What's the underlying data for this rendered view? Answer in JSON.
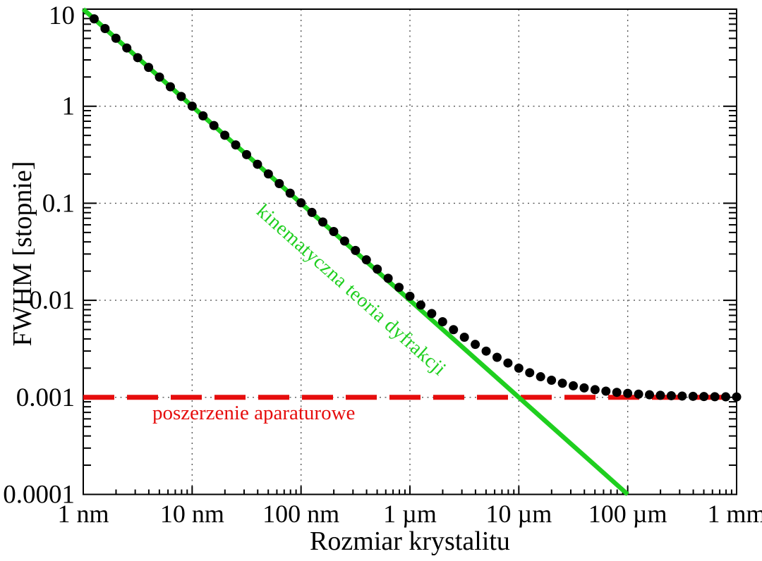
{
  "chart_data": {
    "type": "line",
    "title": "",
    "xlabel": "Rozmiar krystalitu",
    "ylabel": "FWHM [stopnie]",
    "grid": "dotted gridlines at log decades, on",
    "legend_position": "none",
    "x_axis": {
      "scale": "log",
      "unit": "nm",
      "min": 1,
      "max": 1000000,
      "ticks": [
        {
          "value": 1,
          "label": "1 nm"
        },
        {
          "value": 10,
          "label": "10 nm"
        },
        {
          "value": 100,
          "label": "100 nm"
        },
        {
          "value": 1000,
          "label": "1 µm"
        },
        {
          "value": 10000,
          "label": "10 µm"
        },
        {
          "value": 100000,
          "label": "100 µm"
        },
        {
          "value": 1000000,
          "label": "1 mm"
        }
      ]
    },
    "y_axis": {
      "scale": "log",
      "min": 0.0001,
      "max": 10,
      "ticks": [
        {
          "value": 10,
          "label": "10"
        },
        {
          "value": 1,
          "label": "1"
        },
        {
          "value": 0.1,
          "label": "0.1"
        },
        {
          "value": 0.01,
          "label": "0.01"
        },
        {
          "value": 0.001,
          "label": "0.001"
        },
        {
          "value": 0.0001,
          "label": "0.0001"
        }
      ]
    },
    "series": [
      {
        "name": "kinematyczna teoria dyfrakcji",
        "type": "line",
        "style": "solid",
        "color": "#1fcf1f",
        "width": 6.5,
        "points": [
          [
            1,
            10
          ],
          [
            100000,
            0.0001
          ]
        ]
      },
      {
        "name": "poszerzenie aparaturowe",
        "type": "line",
        "style": "dashed",
        "color": "#e60d0d",
        "width": 7,
        "points": [
          [
            1,
            0.001
          ],
          [
            1000000,
            0.001
          ]
        ]
      },
      {
        "name": "",
        "type": "scatter",
        "marker": "circle",
        "color": "#000000",
        "radius": 6.5,
        "points": [
          [
            1.2589,
            7.9443
          ],
          [
            1.5849,
            6.3106
          ],
          [
            1.9953,
            5.0129
          ],
          [
            2.5119,
            3.9821
          ],
          [
            3.1623,
            3.1633
          ],
          [
            3.9811,
            2.5129
          ],
          [
            5.0119,
            1.9963
          ],
          [
            6.3096,
            1.5859
          ],
          [
            7.9433,
            1.2599
          ],
          [
            10,
            1.001
          ],
          [
            12.589,
            0.79533
          ],
          [
            15.849,
            0.63196
          ],
          [
            19.953,
            0.50219
          ],
          [
            25.119,
            0.39911
          ],
          [
            31.623,
            0.31723
          ],
          [
            39.811,
            0.25219
          ],
          [
            50.119,
            0.20053
          ],
          [
            63.096,
            0.15949
          ],
          [
            79.433,
            0.12689
          ],
          [
            100,
            0.101
          ],
          [
            125.89,
            0.080433
          ],
          [
            158.49,
            0.064096
          ],
          [
            199.53,
            0.051119
          ],
          [
            251.19,
            0.040811
          ],
          [
            316.23,
            0.032623
          ],
          [
            398.11,
            0.026119
          ],
          [
            501.19,
            0.020953
          ],
          [
            630.96,
            0.016849
          ],
          [
            794.33,
            0.013589
          ],
          [
            1000,
            0.011
          ],
          [
            1258.9,
            0.0089433
          ],
          [
            1584.9,
            0.0073096
          ],
          [
            1995.3,
            0.0060119
          ],
          [
            2511.9,
            0.0049811
          ],
          [
            3162.3,
            0.0041623
          ],
          [
            3981.1,
            0.0035119
          ],
          [
            5011.9,
            0.0029953
          ],
          [
            6309.6,
            0.0025849
          ],
          [
            7943.3,
            0.0022589
          ],
          [
            10000,
            0.002
          ],
          [
            12589,
            0.0017943
          ],
          [
            15849,
            0.001631
          ],
          [
            19953,
            0.0015012
          ],
          [
            25119,
            0.0013981
          ],
          [
            31623,
            0.0013162
          ],
          [
            39811,
            0.0012512
          ],
          [
            50119,
            0.0011995
          ],
          [
            63096,
            0.0011585
          ],
          [
            79433,
            0.0011259
          ],
          [
            100000,
            0.0011
          ],
          [
            125890,
            0.0010794
          ],
          [
            158490,
            0.0010631
          ],
          [
            199530,
            0.0010501
          ],
          [
            251190,
            0.0010398
          ],
          [
            316230,
            0.0010316
          ],
          [
            398110,
            0.0010251
          ],
          [
            501190,
            0.00102
          ],
          [
            630960,
            0.0010158
          ],
          [
            794330,
            0.0010126
          ],
          [
            1000000,
            0.00101
          ]
        ]
      }
    ],
    "annotations": [
      {
        "text": "kinematyczna teoria dyfrakcji",
        "color": "#1fcf1f",
        "rotation_deg": 41.74
      },
      {
        "text": "poszerzenie aparaturowe",
        "color": "#e60d0d",
        "rotation_deg": 0
      }
    ]
  },
  "style": {
    "frame_color": "#000000",
    "grid_color": "#555555",
    "background": "#ffffff"
  }
}
